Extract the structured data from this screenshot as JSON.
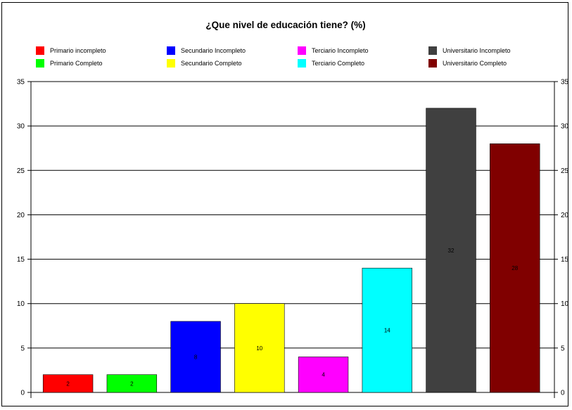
{
  "chart_data": {
    "type": "bar",
    "title": "¿Que nivel de educación tiene? (%)",
    "categories": [
      "Primario incompleto",
      "Primario Completo",
      "Secundario Incompleto",
      "Secundario Completo",
      "Terciario Incompleto",
      "Terciario Completo",
      "Universitario Incompleto",
      "Universitario Completo"
    ],
    "values": [
      2,
      2,
      8,
      10,
      4,
      14,
      32,
      28
    ],
    "value_labels": [
      "2",
      "2",
      "8",
      "10",
      "4",
      "14",
      "32",
      "28"
    ],
    "colors": [
      "#ff0000",
      "#00ff00",
      "#0000ff",
      "#ffff00",
      "#ff00ff",
      "#00ffff",
      "#404040",
      "#800000"
    ],
    "ylim": [
      0,
      35
    ],
    "yticks": [
      0,
      5,
      10,
      15,
      20,
      25,
      30,
      35
    ],
    "grid": true,
    "legend_position": "top",
    "xlabel": "",
    "ylabel": ""
  }
}
